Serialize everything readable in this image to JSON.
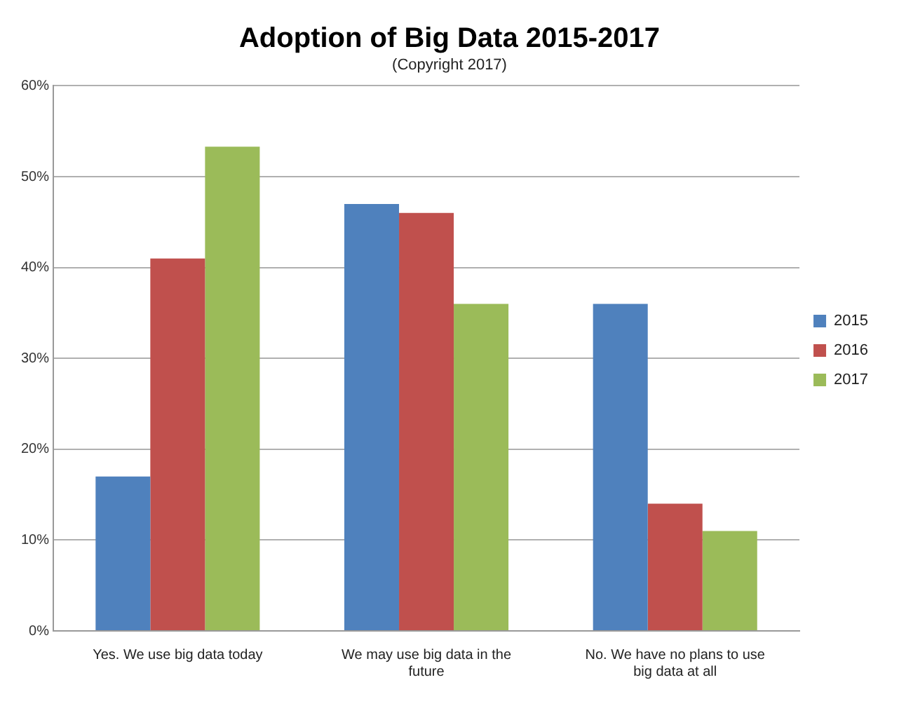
{
  "chart_data": {
    "type": "bar",
    "title": "Adoption of Big Data 2015-2017",
    "subtitle": "(Copyright 2017)",
    "categories": [
      "Yes. We use big data today",
      "We may use big data in the future",
      "No. We have no plans to use big data at all"
    ],
    "series": [
      {
        "name": "2015",
        "color": "#4f81bd",
        "values": [
          17,
          47,
          36
        ]
      },
      {
        "name": "2016",
        "color": "#c0504d",
        "values": [
          41,
          46,
          14
        ]
      },
      {
        "name": "2017",
        "color": "#9bbb59",
        "values": [
          53.3,
          36,
          11
        ]
      }
    ],
    "ylim": [
      0,
      60
    ],
    "yticks": [
      {
        "value": 0,
        "label": "0%"
      },
      {
        "value": 10,
        "label": "10%"
      },
      {
        "value": 20,
        "label": "20%"
      },
      {
        "value": 30,
        "label": "30%"
      },
      {
        "value": 40,
        "label": "40%"
      },
      {
        "value": 50,
        "label": "50%"
      },
      {
        "value": 60,
        "label": "60%"
      }
    ],
    "grid": "y",
    "legend": "right"
  }
}
